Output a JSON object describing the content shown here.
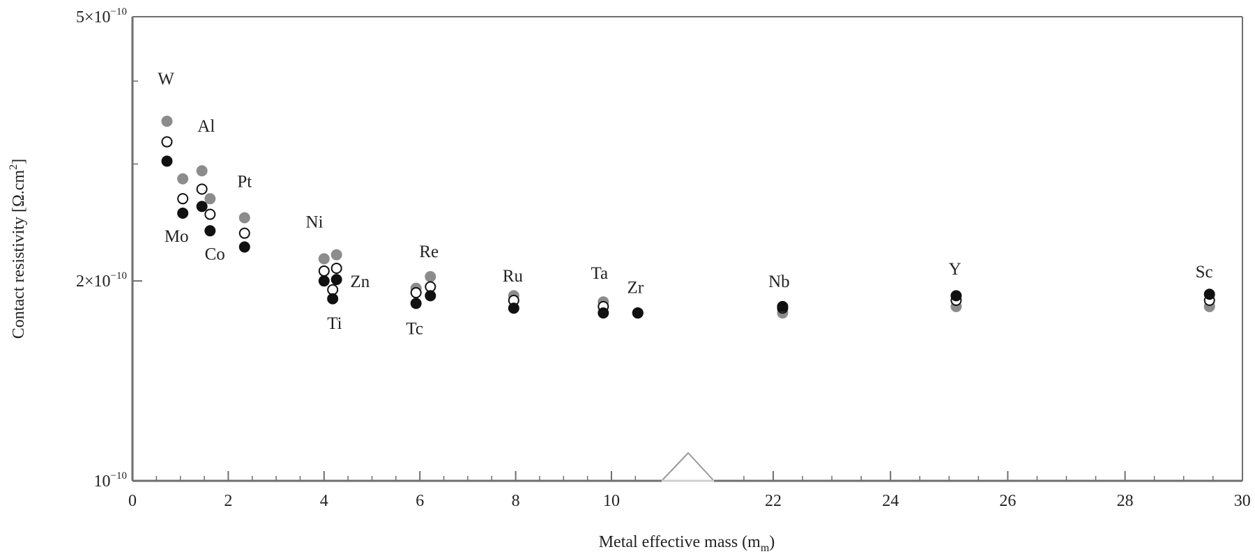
{
  "chart_data": {
    "type": "scatter",
    "xlabel": "Metal effective mass (m",
    "xlabel_sub": "m",
    "xlabel_close": ")",
    "ylabel": "Contact resistivity [Ω.cm",
    "ylabel_sup": "2",
    "ylabel_close": "]",
    "yscale": "log",
    "ylim": [
      1e-10,
      5e-10
    ],
    "xlim_segments": [
      [
        0,
        11.2
      ],
      [
        21.1,
        30
      ]
    ],
    "x_break": true,
    "y_ticks": [
      {
        "value": 5e-10,
        "mantissa": "5×10",
        "exp": "−10"
      },
      {
        "value": 2e-10,
        "mantissa": "2×10",
        "exp": "−10"
      },
      {
        "value": 1e-10,
        "mantissa": "10",
        "exp": "−10"
      }
    ],
    "y_minor_ticks": [
      3e-10,
      4e-10
    ],
    "x_ticks": [
      "0",
      "2",
      "4",
      "6",
      "8",
      "10",
      "22",
      "24",
      "26",
      "28",
      "30"
    ],
    "x_tick_values": [
      0,
      2,
      4,
      6,
      8,
      10,
      22,
      24,
      26,
      28,
      30
    ],
    "metals": [
      "W",
      "Mo",
      "Al",
      "Co",
      "Pt",
      "Ni",
      "Zn",
      "Ti",
      "Tc",
      "Re",
      "Ru",
      "Ta",
      "Zr",
      "Nb",
      "Y",
      "Sc"
    ],
    "x": [
      0.72,
      1.05,
      1.45,
      1.62,
      2.34,
      4.0,
      4.26,
      4.18,
      5.92,
      6.22,
      7.96,
      9.83,
      10.55,
      22.16,
      25.12,
      29.44
    ],
    "series": [
      {
        "fill": "#8c8c8c",
        "stroke": "#8c8c8c",
        "values": [
          3.48e-10,
          2.85e-10,
          2.93e-10,
          2.66e-10,
          2.49e-10,
          2.16e-10,
          2.19e-10,
          null,
          1.95e-10,
          2.03e-10,
          1.9e-10,
          1.86e-10,
          1.79e-10,
          1.79e-10,
          1.83e-10,
          1.83e-10
        ]
      },
      {
        "fill": "#ffffff",
        "stroke": "#111111",
        "values": [
          3.24e-10,
          2.66e-10,
          2.75e-10,
          2.52e-10,
          2.36e-10,
          2.07e-10,
          2.09e-10,
          1.94e-10,
          1.92e-10,
          1.96e-10,
          1.87e-10,
          1.83e-10,
          1.79e-10,
          1.82e-10,
          1.87e-10,
          1.87e-10
        ]
      },
      {
        "fill": "#111111",
        "stroke": "#111111",
        "values": [
          3.03e-10,
          2.53e-10,
          2.59e-10,
          2.38e-10,
          2.25e-10,
          2e-10,
          2.01e-10,
          1.88e-10,
          1.85e-10,
          1.9e-10,
          1.82e-10,
          1.79e-10,
          1.79e-10,
          1.83e-10,
          1.9e-10,
          1.91e-10
        ]
      }
    ],
    "annotations": [
      {
        "text": "W",
        "x": 0.7,
        "y": 4.04e-10
      },
      {
        "text": "Al",
        "x": 1.54,
        "y": 3.43e-10
      },
      {
        "text": "Pt",
        "x": 2.34,
        "y": 2.83e-10
      },
      {
        "text": "Ni",
        "x": 3.8,
        "y": 2.46e-10
      },
      {
        "text": "Mo",
        "x": 0.92,
        "y": 2.34e-10
      },
      {
        "text": "Co",
        "x": 1.72,
        "y": 2.2e-10
      },
      {
        "text": "Re",
        "x": 6.19,
        "y": 2.22e-10
      },
      {
        "text": "Zn",
        "x": 4.75,
        "y": 2e-10
      },
      {
        "text": "Ru",
        "x": 7.94,
        "y": 2.04e-10
      },
      {
        "text": "Ta",
        "x": 9.75,
        "y": 2.06e-10
      },
      {
        "text": "Zr",
        "x": 10.5,
        "y": 1.96e-10
      },
      {
        "text": "Nb",
        "x": 22.1,
        "y": 2e-10
      },
      {
        "text": "Y",
        "x": 25.1,
        "y": 2.09e-10
      },
      {
        "text": "Sc",
        "x": 29.35,
        "y": 2.07e-10
      },
      {
        "text": "Ti",
        "x": 4.22,
        "y": 1.73e-10
      },
      {
        "text": "Tc",
        "x": 5.89,
        "y": 1.7e-10
      }
    ],
    "colors": {
      "axis": "#6e6e6e",
      "break": "#9a9a9a"
    }
  }
}
